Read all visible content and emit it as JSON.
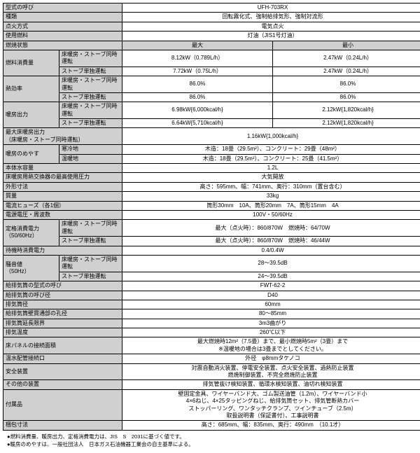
{
  "rows": [
    {
      "t": "r1",
      "l": "型式の呼び",
      "v": "UFH-703RX"
    },
    {
      "t": "r1",
      "l": "種類",
      "v": "回転霧化式、強制給排気形、強制対流形"
    },
    {
      "t": "r1",
      "l": "点火方式",
      "v": "電気点火"
    },
    {
      "t": "r1",
      "l": "使用燃料",
      "v": "灯油（JIS1号灯油）"
    },
    {
      "t": "hdr",
      "l": "燃焼状態",
      "a": "最大",
      "b": "最小"
    },
    {
      "t": "g2x2",
      "l": "燃料消費量",
      "s1": "床暖房・ストーブ同時運転",
      "a1": "8.12kW（0.789L/h）",
      "b1": "2.47kW（0.24L/h）",
      "s2": "ストーブ単独運転",
      "a2": "7.72kW（0.75L/h）",
      "b2": "2.47kW（0.24L/h）"
    },
    {
      "t": "g2x2",
      "l": "熱効率",
      "s1": "床暖房・ストーブ同時運転",
      "a1": "86.0%",
      "b1": "86.0%",
      "s2": "ストーブ単独運転",
      "a2": "86.0%",
      "b2": "86.0%"
    },
    {
      "t": "g2x2",
      "l": "暖房出力",
      "s1": "床暖房・ストーブ同時運転",
      "a1": "6.98kW{6,000kcal/h}",
      "b1": "2.12kW{1,820kcal/h}",
      "s2": "ストーブ単独運転",
      "a2": "6.64kW{5,710kcal/h}",
      "b2": "2.12kW{1,820kcal/h}"
    },
    {
      "t": "r1",
      "l": "最大床暖房出力\n（床暖房・ストーブ同時運転）",
      "v": "1.16kW{1,000kcal/h}"
    },
    {
      "t": "g2x1",
      "l": "暖房のめやす",
      "s1": "寒冷地",
      "v1": "木造：18畳（29.5m²）、コンクリート：29畳（48m²）",
      "s2": "温暖地",
      "v2": "木造：18畳（29.5m²）、コンクリート：25畳（41.5m²）"
    },
    {
      "t": "r1",
      "l": "本体水容量",
      "v": "1.2L"
    },
    {
      "t": "r1",
      "l": "床暖房用熱交換器の最高使用圧力",
      "v": "大気開放"
    },
    {
      "t": "r1",
      "l": "外形寸法",
      "v": "高さ：595mm、幅：741mm、奥行：310mm（置台含む）"
    },
    {
      "t": "r1",
      "l": "質量",
      "v": "33kg"
    },
    {
      "t": "r1",
      "l": "電流ヒューズ（各1個）",
      "v": "筒形30mm　10A、筒形20mm　7A、筒形15mm　4A"
    },
    {
      "t": "r1",
      "l": "電源電圧・周波数",
      "v": "100V・50/60Hz"
    },
    {
      "t": "g2x1b",
      "l": "定格消費電力\n（50/60Hz）",
      "s1": "床暖房・ストーブ同時運転",
      "v1": "最大（点火時）：860/870W　燃焼時：64/70W",
      "s2": "ストーブ単独運転",
      "v2": "最大（点火時）：860/870W　燃焼時：46/44W"
    },
    {
      "t": "r1",
      "l": "待機時消費電力",
      "v": "0.4/0.4W"
    },
    {
      "t": "g2x1b",
      "l": "騒音値\n（50Hz）",
      "s1": "床暖房・ストーブ同時運転",
      "v1": "28〜39.5dB",
      "s2": "ストーブ単独運転",
      "v2": "24〜39.5dB"
    },
    {
      "t": "r1",
      "l": "給排気筒の型式の呼び",
      "v": "FWT-62-2"
    },
    {
      "t": "r1",
      "l": "給排気筒の呼び径",
      "v": "D40"
    },
    {
      "t": "r1",
      "l": "排気筒径",
      "v": "60mm"
    },
    {
      "t": "r1",
      "l": "給排気筒壁貫通部の孔径",
      "v": "80〜85mm"
    },
    {
      "t": "r1",
      "l": "排気筒延長限界",
      "v": "3m3曲がり"
    },
    {
      "t": "r1",
      "l": "排気温度",
      "v": "260℃以下"
    },
    {
      "t": "r1",
      "l": "床パネルの接続面積",
      "v": "最大燃焼時12m²（7.5畳）まで、最小燃焼時5m²（3畳）まで\n※温暖地の場合は3畳までとしてください。"
    },
    {
      "t": "r1",
      "l": "温水配管接続口",
      "v": "外径　φ8mmタケノコ"
    },
    {
      "t": "r1",
      "l": "安全装置",
      "v": "対震自動消火装置、停電安全装置、点火安全装置、過熱防止装置\n燃焼制御装置、不完全燃焼防止装置"
    },
    {
      "t": "r1",
      "l": "その他の装置",
      "v": "排気管抜け検知装置、循環水検知装置、油切れ検知装置"
    },
    {
      "t": "r1",
      "l": "付属品",
      "v": "壁固定金具、ワイヤーバンド大、ゴム製送油管（1.2m）、ワイヤーバンド小\n4×6ねじ、4×25タッピングねじ、給排気筒セット、排気管断熱カバー\nストッパーリング、ワンタッチクランプ、ツインチューブ（2.5m）\n取扱説明書（保証書付）、工事説明書"
    },
    {
      "t": "r1",
      "l": "梱包寸法",
      "v": "高さ：685mm、幅：835mm、奥行：490mm　（10.1才）"
    }
  ],
  "notes": [
    "●燃料消費量、暖房出力、定格消費電力は、JIS　S　2031に基づく値です。",
    "●暖房のめやすは、一般社団法人　日本ガス石油機器工業会の自主基準による。"
  ]
}
